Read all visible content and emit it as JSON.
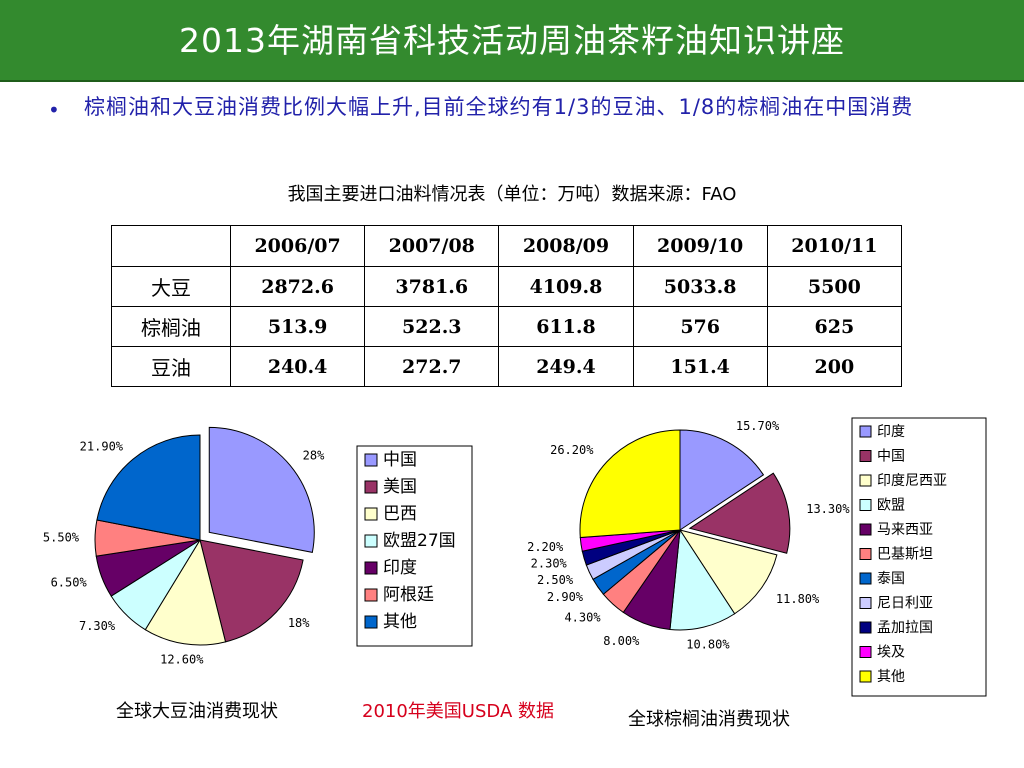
{
  "header": {
    "title": "2013年湖南省科技活动周油茶籽油知识讲座"
  },
  "bullet": {
    "text": "棕榈油和大豆油消费比例大幅上升,目前全球约有1/3的豆油、1/8的棕榈油在中国消费"
  },
  "table": {
    "caption": "我国主要进口油料情况表（单位：万吨）数据来源：FAO",
    "columns": [
      "",
      "2006/07",
      "2007/08",
      "2008/09",
      "2009/10",
      "2010/11"
    ],
    "rows": [
      {
        "name": "大豆",
        "values": [
          "2872.6",
          "3781.6",
          "4109.8",
          "5033.8",
          "5500"
        ]
      },
      {
        "name": "棕榈油",
        "values": [
          "513.9",
          "522.3",
          "611.8",
          "576",
          "625"
        ]
      },
      {
        "name": "豆油",
        "values": [
          "240.4",
          "272.7",
          "249.4",
          "151.4",
          "200"
        ]
      }
    ]
  },
  "chart_data": [
    {
      "type": "pie",
      "title": "全球大豆油消费现状",
      "categories": [
        "中国",
        "美国",
        "巴西",
        "欧盟27国",
        "印度",
        "阿根廷",
        "其他"
      ],
      "values": [
        28,
        18,
        12.6,
        7.3,
        6.5,
        5.5,
        21.9
      ],
      "labels": [
        "28%",
        "18%",
        "12.60%",
        "7.30%",
        "6.50%",
        "5.50%",
        "21.90%"
      ],
      "colors": [
        "#9999ff",
        "#993366",
        "#ffffcc",
        "#ccffff",
        "#660066",
        "#ff8080",
        "#0066cc"
      ],
      "exploded": "中国",
      "legend": "right"
    },
    {
      "type": "pie",
      "title": "全球棕榈油消费现状",
      "categories": [
        "印度",
        "中国",
        "印度尼西亚",
        "欧盟",
        "马来西亚",
        "巴基斯坦",
        "泰国",
        "尼日利亚",
        "孟加拉国",
        "埃及",
        "其他"
      ],
      "values": [
        15.7,
        13.3,
        11.8,
        10.8,
        8.0,
        4.3,
        2.9,
        2.5,
        2.3,
        2.2,
        26.2
      ],
      "labels": [
        "15.70%",
        "13.30%",
        "11.80%",
        "10.80%",
        "8.00%",
        "4.30%",
        "2.90%",
        "2.50%",
        "2.30%",
        "2.20%",
        "26.20%"
      ],
      "colors": [
        "#9999ff",
        "#993366",
        "#ffffcc",
        "#ccffff",
        "#660066",
        "#ff8080",
        "#0066cc",
        "#ccccff",
        "#000080",
        "#ff00ff",
        "#ffff00"
      ],
      "exploded": "中国",
      "legend": "right"
    }
  ],
  "captions": {
    "source": "2010年美国USDA 数据"
  }
}
